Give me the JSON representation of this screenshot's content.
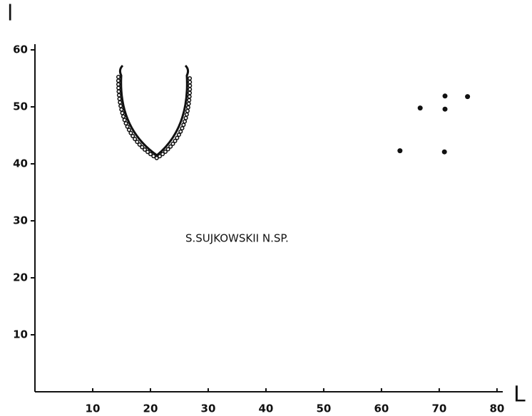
{
  "chart_data": {
    "type": "scatter",
    "x_label": "L",
    "y_label": "l",
    "annotation": "S.SUJKOWSKII N.SP.",
    "x": [
      66.7,
      71,
      74.9,
      71,
      63.2,
      70.9
    ],
    "values": [
      49.8,
      51.9,
      51.8,
      49.6,
      42.3,
      42.1
    ],
    "color": "#111111",
    "xlim": [
      0,
      81
    ],
    "xticks": [
      10,
      20,
      30,
      40,
      50,
      60,
      70,
      80
    ],
    "ylim": [
      0,
      61
    ],
    "yticks": [
      10,
      20,
      30,
      40,
      50,
      60
    ],
    "grid": false
  }
}
